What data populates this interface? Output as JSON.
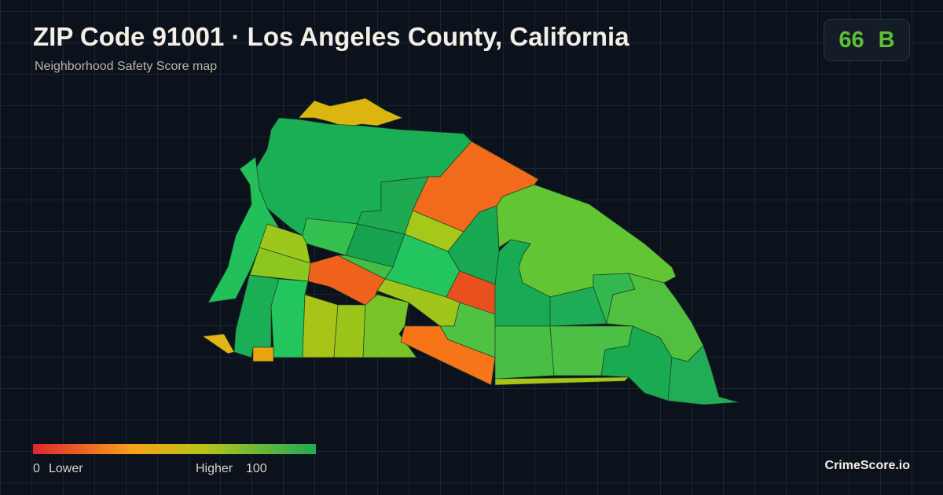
{
  "header": {
    "title": "ZIP Code 91001 · Los Angeles County, California",
    "subtitle": "Neighborhood Safety Score map"
  },
  "score": {
    "value": 66,
    "grade": "B"
  },
  "legend": {
    "min": 0,
    "min_label": "Lower",
    "max_label": "Higher",
    "max": 100
  },
  "brand": "CrimeScore.io"
}
